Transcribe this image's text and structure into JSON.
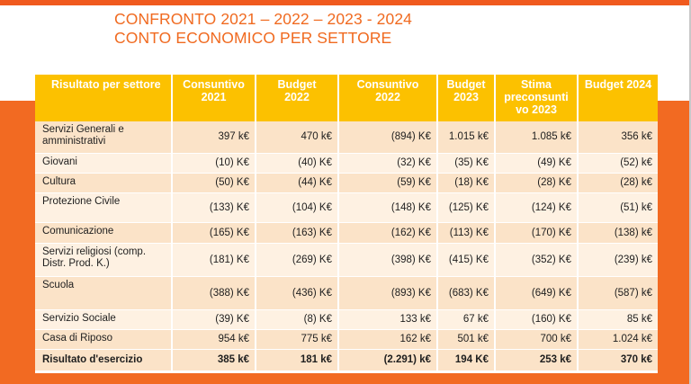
{
  "title": {
    "line1": "CONFRONTO 2021 – 2022 – 2023 - 2024",
    "line2": "CONTO ECONOMICO PER SETTORE"
  },
  "colors": {
    "accent": "#f26a22",
    "title": "#f06a20",
    "header": "#fcc100",
    "row_dark": "#fbe3c8",
    "row_light": "#fef1e2"
  },
  "table": {
    "headers": [
      "Risultato per settore",
      "Consuntivo 2021",
      "Budget 2022",
      "Consuntivo 2022",
      "Budget 2023",
      "Stima preconsuntivo 2023",
      "Budget 2024"
    ],
    "header_lines": [
      [
        "Risultato per settore"
      ],
      [
        "Consuntivo",
        "2021"
      ],
      [
        "Budget",
        "2022"
      ],
      [
        "Consuntivo",
        "2022"
      ],
      [
        "Budget",
        "2023"
      ],
      [
        "Stima",
        "preconsunti",
        "vo 2023"
      ],
      [
        "Budget 2024"
      ]
    ],
    "rows": [
      {
        "label": "Servizi Generali e amministrativi",
        "values": [
          "397 k€",
          "470 k€",
          "(894) K€",
          "1.015 k€",
          "1.085 k€",
          "356 k€"
        ]
      },
      {
        "label": "Giovani",
        "values": [
          "(10) K€",
          "(40) K€",
          "(32) K€",
          "(35) K€",
          "(49) K€",
          "(52) k€"
        ]
      },
      {
        "label": "Cultura",
        "values": [
          "(50) K€",
          "(44) K€",
          "(59) K€",
          "(18) K€",
          "(28) K€",
          "(28) k€"
        ]
      },
      {
        "label": "Protezione Civile",
        "values": [
          "(133) K€",
          "(104) K€",
          "(148) K€",
          "(125) K€",
          "(124) K€",
          "(51) k€"
        ]
      },
      {
        "label": "Comunicazione",
        "values": [
          "(165) K€",
          "(163) K€",
          "(162) K€",
          "(113) K€",
          "(170) K€",
          "(138) k€"
        ]
      },
      {
        "label": "Servizi religiosi (comp. Distr. Prod. K.)",
        "values": [
          "(181) K€",
          "(269) K€",
          "(398) K€",
          "(415) K€",
          "(352) K€",
          "(239) k€"
        ]
      },
      {
        "label": "Scuola",
        "values": [
          "(388) K€",
          "(436) K€",
          "(893) K€",
          "(683) K€",
          "(649) K€",
          "(587) k€"
        ]
      },
      {
        "label": "Servizio Sociale",
        "values": [
          "(39) K€",
          "(8) K€",
          "133 k€",
          "67 k€",
          "(160) K€",
          "85 k€"
        ]
      },
      {
        "label": "Casa di Riposo",
        "values": [
          "954 k€",
          "775 k€",
          "162 k€",
          "501 k€",
          "700 k€",
          "1.024 k€"
        ]
      }
    ],
    "total": {
      "label": "Risultato d'esercizio",
      "values": [
        "385 k€",
        "181 k€",
        "(2.291) k€",
        "194 K€",
        "253 k€",
        "370 k€"
      ]
    }
  }
}
